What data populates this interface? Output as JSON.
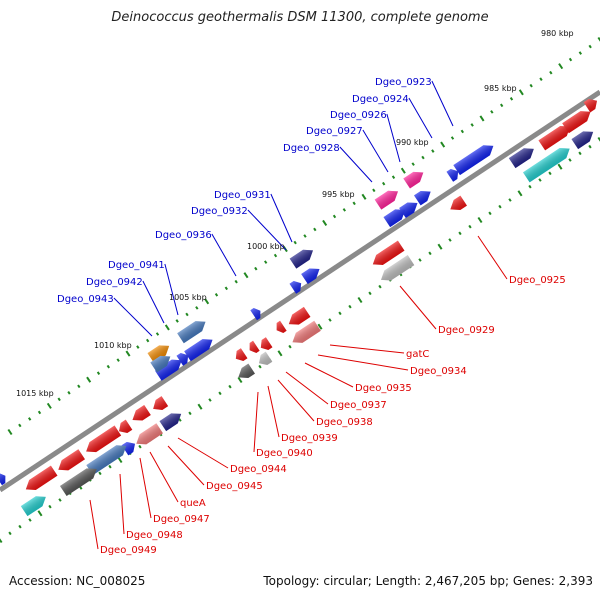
{
  "title": "Deinococcus geothermalis DSM 11300, complete genome",
  "footer": {
    "accession": "Accession: NC_008025",
    "topology": "Topology: circular; Length: 2,467,205 bp; Genes: 2,393"
  },
  "colors": {
    "backbone": "#8a8a8a",
    "forward_label": "#0000cc",
    "reverse_label": "#dd0000",
    "red": "#ee1111",
    "blue": "#1122ee",
    "pink": "#ff2299",
    "cyan": "#22cccc",
    "steel": "#4477bb",
    "navy": "#222288",
    "orange": "#ee8800",
    "gray": "#555555",
    "lightgray": "#bbbbbb",
    "salmon": "#ee7777",
    "tick": "#228822"
  },
  "kbp_marks": [
    "980 kbp",
    "985 kbp",
    "990 kbp",
    "995 kbp",
    "1000 kbp",
    "1005 kbp",
    "1010 kbp",
    "1015 kbp"
  ],
  "forward_labels": [
    "Dgeo_0923",
    "Dgeo_0924",
    "Dgeo_0926",
    "Dgeo_0927",
    "Dgeo_0928",
    "Dgeo_0931",
    "Dgeo_0932",
    "Dgeo_0936",
    "Dgeo_0941",
    "Dgeo_0942",
    "Dgeo_0943"
  ],
  "reverse_labels": [
    "Dgeo_0925",
    "Dgeo_0929",
    "gatC",
    "Dgeo_0934",
    "Dgeo_0935",
    "Dgeo_0937",
    "Dgeo_0938",
    "Dgeo_0939",
    "Dgeo_0940",
    "Dgeo_0944",
    "Dgeo_0945",
    "queA",
    "Dgeo_0947",
    "Dgeo_0948",
    "Dgeo_0949"
  ]
}
